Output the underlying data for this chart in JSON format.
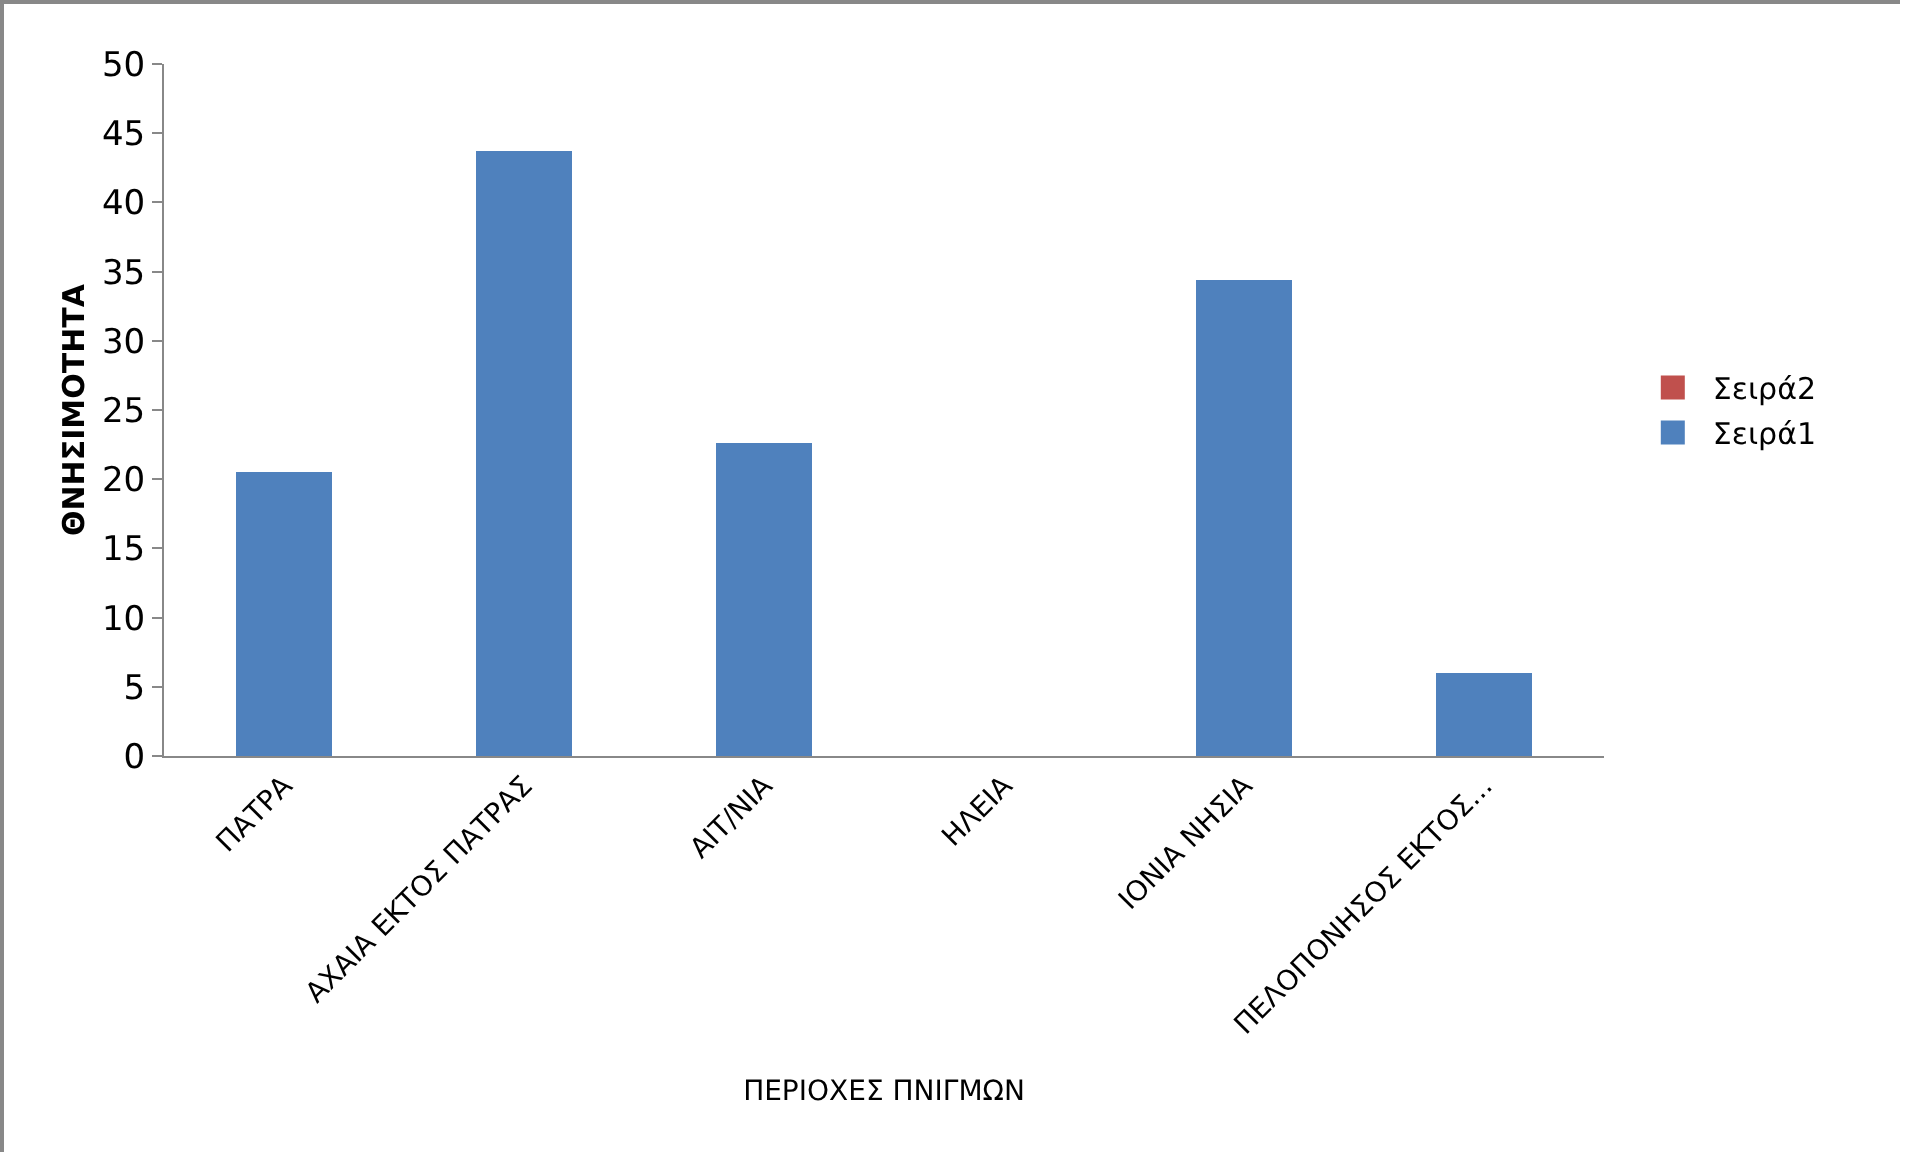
{
  "chart_data": {
    "type": "bar",
    "stacked": true,
    "xlabel": "ΠΕΡΙΟΧΕΣ ΠΝΙΓΜΩΝ",
    "ylabel": "ΘΝΗΣΙΜΟΤΗΤΑ",
    "categories": [
      "ΠΑΤΡΑ",
      "ΑΧΑΙΑ ΕΚΤΟΣ ΠΑΤΡΑΣ",
      "ΑΙΤ/ΝΙΑ",
      "ΗΛΕΙΑ",
      "ΙΟΝΙΑ ΝΗΣΙΑ",
      "ΠΕΛΟΠΟΝΗΣΟΣ ΕΚΤΟΣ..."
    ],
    "series": [
      {
        "name": "Σειρά1",
        "color": "#4f81bd",
        "values": [
          20.5,
          43.7,
          22.6,
          null,
          34.4,
          6.0
        ]
      },
      {
        "name": "Σειρά2",
        "color": "#c0504d",
        "values": [
          null,
          null,
          null,
          null,
          null,
          null
        ]
      }
    ],
    "ylim": [
      0,
      50
    ],
    "yticks": [
      0,
      5,
      10,
      15,
      20,
      25,
      30,
      35,
      40,
      45,
      50
    ],
    "grid": false,
    "legend": "right"
  }
}
